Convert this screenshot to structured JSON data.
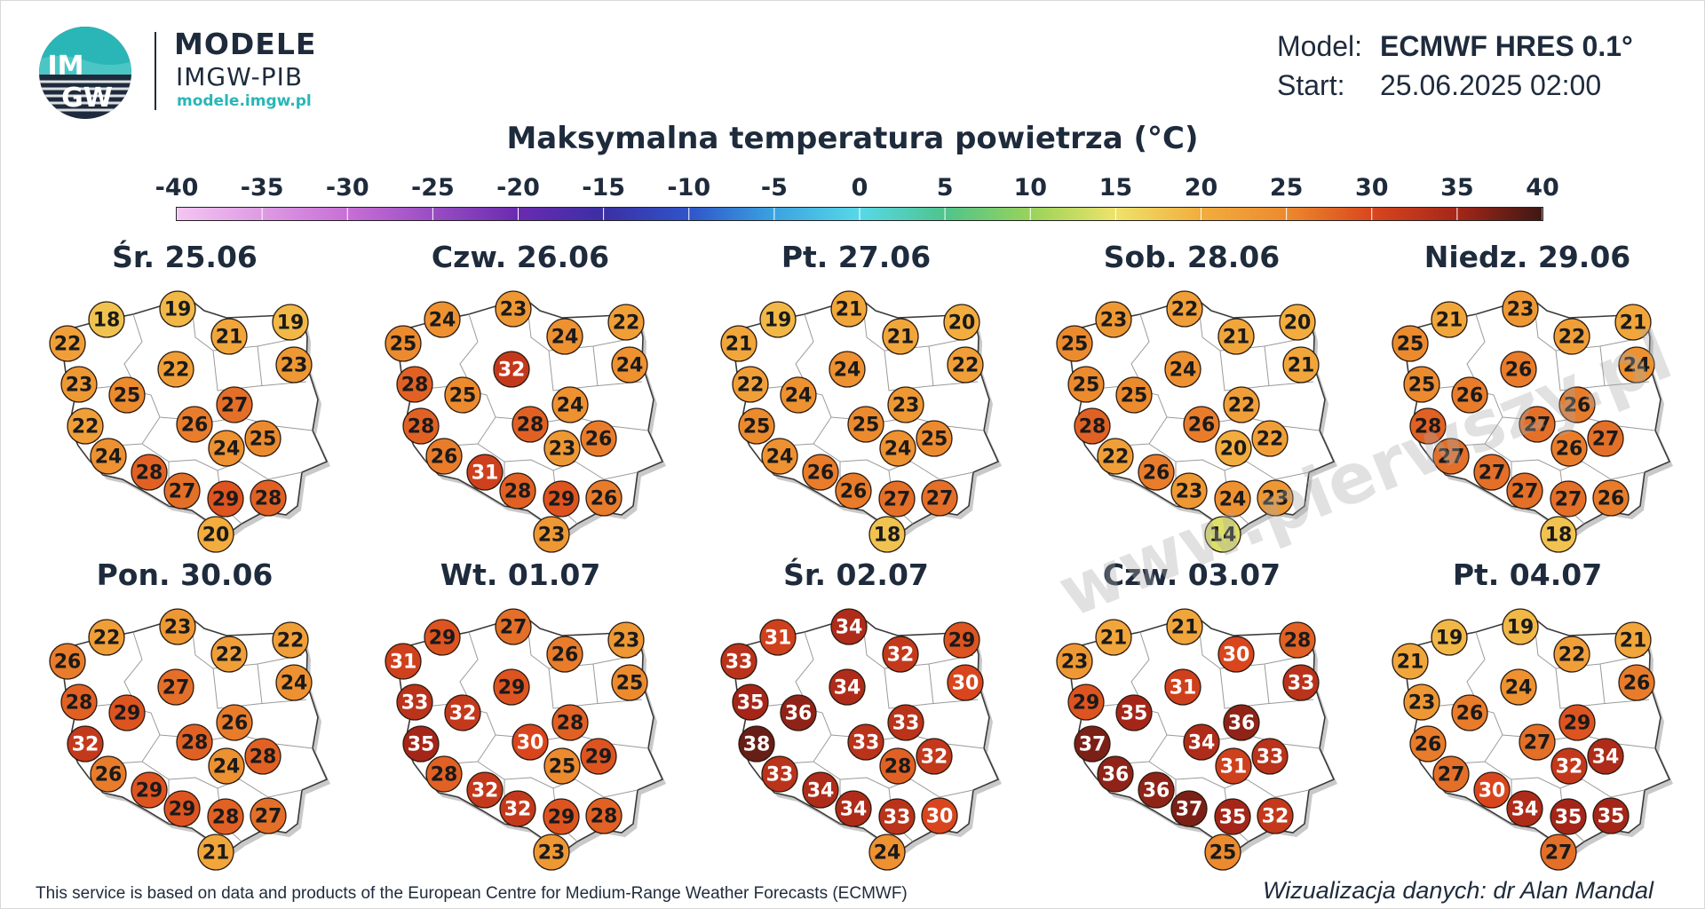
{
  "brand": {
    "title": "MODELE",
    "subtitle": "IMGW-PIB",
    "url": "modele.imgw.pl",
    "logo_text_top": "IM",
    "logo_text_bottom": "GW"
  },
  "model_info": {
    "model_label": "Model:",
    "model_value": "ECMWF HRES 0.1°",
    "start_label": "Start:",
    "start_value": "25.06.2025 02:00"
  },
  "title": "Maksymalna temperatura powietrza (°C)",
  "colorbar": {
    "ticks": [
      "-40",
      "-35",
      "-30",
      "-25",
      "-20",
      "-15",
      "-10",
      "-5",
      "0",
      "5",
      "10",
      "15",
      "20",
      "25",
      "30",
      "35",
      "40"
    ],
    "range": [
      -40,
      40
    ],
    "stops": [
      {
        "v": -40,
        "c": "#f4c6f2"
      },
      {
        "v": -30,
        "c": "#c86fd6"
      },
      {
        "v": -20,
        "c": "#6a2bb0"
      },
      {
        "v": -15,
        "c": "#3b2fa3"
      },
      {
        "v": -10,
        "c": "#2f55c9"
      },
      {
        "v": -5,
        "c": "#3ba3e0"
      },
      {
        "v": 0,
        "c": "#57d8e8"
      },
      {
        "v": 5,
        "c": "#4fc48c"
      },
      {
        "v": 10,
        "c": "#98d35a"
      },
      {
        "v": 15,
        "c": "#eee36a"
      },
      {
        "v": 20,
        "c": "#f2ad3e"
      },
      {
        "v": 25,
        "c": "#ec8a2e"
      },
      {
        "v": 30,
        "c": "#d9461e"
      },
      {
        "v": 35,
        "c": "#a52619"
      },
      {
        "v": 40,
        "c": "#3d1814"
      }
    ]
  },
  "station_order": [
    "Szczecin-coast",
    "Koszalin",
    "Gdansk",
    "Suwalki",
    "Szczecin",
    "Olsztyn",
    "Bialystok",
    "Gorzow",
    "Bydgoszcz",
    "Poznan",
    "Warszawa",
    "Zielona-Gora",
    "Lodz",
    "Lublin",
    "Wroclaw",
    "Opole",
    "Katowice",
    "Kielce-Rzeszow",
    "Krakow",
    "Zakopane"
  ],
  "panels": [
    {
      "day": "Śr. 25.06",
      "temps": [
        22,
        18,
        19,
        19,
        23,
        21,
        23,
        25,
        22,
        22,
        27,
        24,
        26,
        25,
        24,
        28,
        27,
        29,
        28,
        20
      ]
    },
    {
      "day": "Czw. 26.06",
      "temps": [
        25,
        24,
        23,
        22,
        28,
        24,
        24,
        25,
        32,
        28,
        24,
        26,
        28,
        26,
        23,
        31,
        28,
        29,
        26,
        23
      ]
    },
    {
      "day": "Pt. 27.06",
      "temps": [
        21,
        19,
        21,
        20,
        22,
        21,
        22,
        24,
        24,
        25,
        23,
        24,
        25,
        25,
        24,
        26,
        26,
        27,
        27,
        18
      ]
    },
    {
      "day": "Sob. 28.06",
      "temps": [
        25,
        23,
        22,
        20,
        25,
        21,
        21,
        25,
        24,
        28,
        22,
        22,
        26,
        22,
        20,
        26,
        23,
        24,
        23,
        14
      ]
    },
    {
      "day": "Niedz. 29.06",
      "temps": [
        25,
        21,
        23,
        21,
        25,
        22,
        24,
        26,
        26,
        28,
        26,
        27,
        27,
        27,
        26,
        27,
        27,
        27,
        26,
        18
      ]
    },
    {
      "day": "Pon. 30.06",
      "temps": [
        26,
        22,
        23,
        22,
        28,
        22,
        24,
        29,
        27,
        32,
        26,
        26,
        28,
        28,
        24,
        29,
        29,
        28,
        27,
        21
      ]
    },
    {
      "day": "Wt. 01.07",
      "temps": [
        31,
        29,
        27,
        23,
        33,
        26,
        25,
        32,
        29,
        35,
        28,
        28,
        30,
        29,
        25,
        32,
        32,
        29,
        28,
        23
      ]
    },
    {
      "day": "Śr. 02.07",
      "temps": [
        33,
        31,
        34,
        29,
        35,
        32,
        30,
        36,
        34,
        38,
        33,
        33,
        33,
        32,
        28,
        34,
        34,
        33,
        30,
        24
      ]
    },
    {
      "day": "Czw. 03.07",
      "temps": [
        23,
        21,
        21,
        28,
        29,
        30,
        33,
        35,
        31,
        37,
        36,
        36,
        34,
        33,
        31,
        36,
        37,
        35,
        32,
        25
      ]
    },
    {
      "day": "Pt. 04.07",
      "temps": [
        21,
        19,
        19,
        21,
        23,
        22,
        26,
        26,
        24,
        26,
        29,
        27,
        27,
        34,
        32,
        30,
        34,
        35,
        35,
        27
      ]
    }
  ],
  "footer": {
    "left": "This service is based on data and products of the European Centre for Medium-Range Weather Forecasts (ECMWF)",
    "right": "Wizualizacja danych: dr Alan Mandal"
  },
  "watermark": "www.pierwszy.pl"
}
